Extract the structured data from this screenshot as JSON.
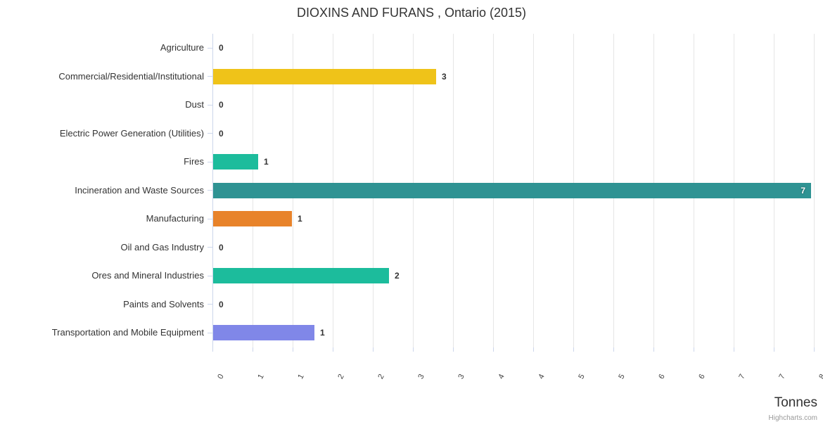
{
  "title": "DIOXINS AND FURANS , Ontario (2015)",
  "credit": "Highcharts.com",
  "colors": {
    "grid": "#e6e6e6",
    "axis": "#ccd6eb",
    "text": "#333333",
    "tick_label": "#444444",
    "credit_text": "#999999",
    "inside_label": "#ffffff"
  },
  "chart_data": {
    "type": "bar",
    "orientation": "horizontal",
    "title": "DIOXINS AND FURANS , Ontario (2015)",
    "xlabel": "Tonnes",
    "ylabel": "",
    "categories": [
      "Agriculture",
      "Commercial/Residential/Institutional",
      "Dust",
      "Electric Power Generation (Utilities)",
      "Fires",
      "Incineration and Waste Sources",
      "Manufacturing",
      "Oil and Gas Industry",
      "Ores and Mineral Industries",
      "Paints and Solvents",
      "Transportation and Mobile Equipment"
    ],
    "values": [
      0,
      2.78,
      0,
      0,
      0.56,
      7.46,
      0.98,
      0,
      2.19,
      0,
      1.26
    ],
    "value_labels": [
      "0",
      "3",
      "0",
      "0",
      "1",
      "7",
      "1",
      "0",
      "2",
      "0",
      "1"
    ],
    "bar_colors": [
      null,
      "#efc319",
      null,
      null,
      "#1cbc9c",
      "#2f9393",
      "#e8832a",
      null,
      "#1cbc9c",
      null,
      "#8087e8"
    ],
    "xlim": [
      0,
      7.5
    ],
    "tick_interval": 0.5,
    "tick_labels": [
      "0",
      "1",
      "1",
      "2",
      "2",
      "3",
      "3",
      "4",
      "4",
      "5",
      "5",
      "6",
      "6",
      "7",
      "7",
      "8"
    ],
    "grid": true,
    "legend": false,
    "unit": "Tonnes"
  }
}
